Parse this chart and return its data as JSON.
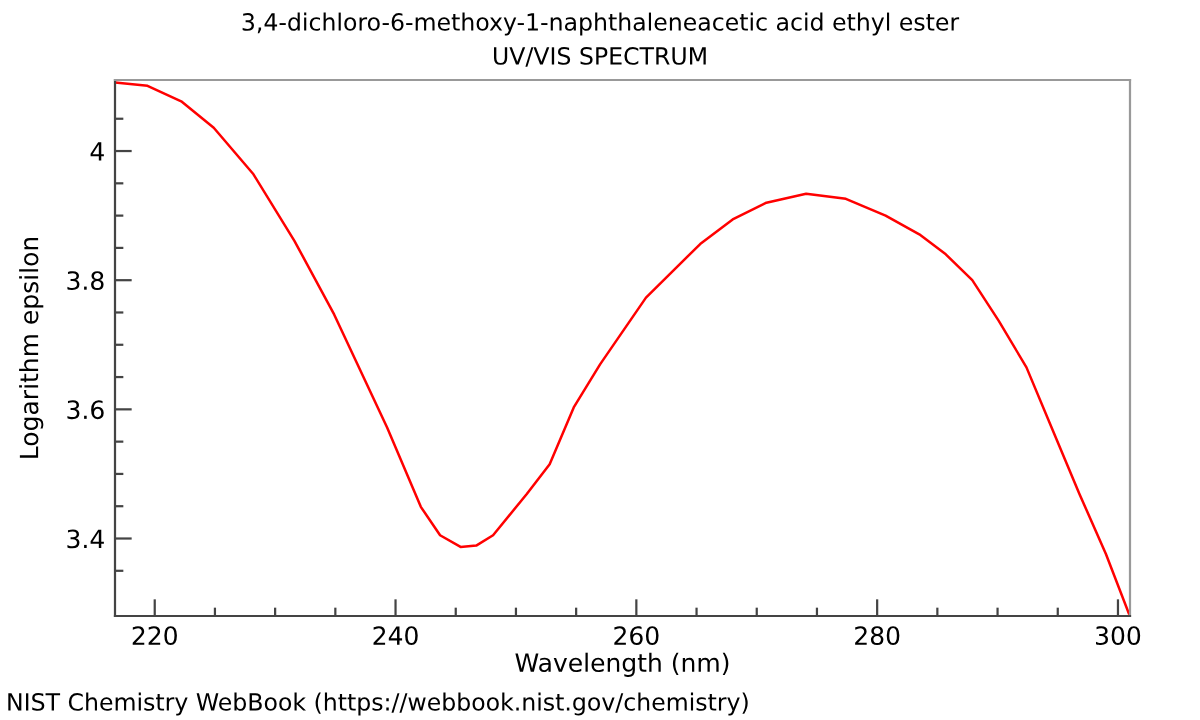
{
  "chart_data": {
    "type": "line",
    "title": "3,4-dichloro-6-methoxy-1-naphthaleneacetic acid ethyl ester",
    "subtitle": "UV/VIS SPECTRUM",
    "xlabel": "Wavelength (nm)",
    "ylabel": "Logarithm epsilon",
    "annotations": [
      "NIST Chemistry WebBook (https://webbook.nist.gov/chemistry)"
    ],
    "xlim": [
      216.7,
      301
    ],
    "ylim": [
      3.28,
      4.11
    ],
    "xticks": [
      220,
      {
        "value": 225,
        "label": null
      },
      {
        "value": 230,
        "label": null
      },
      {
        "value": 235,
        "label": null
      },
      240,
      {
        "value": 245,
        "label": null
      },
      {
        "value": 250,
        "label": null
      },
      {
        "value": 255,
        "label": null
      },
      260,
      {
        "value": 265,
        "label": null
      },
      {
        "value": 270,
        "label": null
      },
      {
        "value": 275,
        "label": null
      },
      280,
      {
        "value": 285,
        "label": null
      },
      {
        "value": 290,
        "label": null
      },
      {
        "value": 295,
        "label": null
      },
      300
    ],
    "yticks": [
      {
        "value": 3.35,
        "label": null
      },
      3.4,
      {
        "value": 3.45,
        "label": null
      },
      {
        "value": 3.5,
        "label": null
      },
      {
        "value": 3.55,
        "label": null
      },
      3.6,
      {
        "value": 3.65,
        "label": null
      },
      {
        "value": 3.7,
        "label": null
      },
      {
        "value": 3.75,
        "label": null
      },
      3.8,
      {
        "value": 3.85,
        "label": null
      },
      {
        "value": 3.9,
        "label": null
      },
      {
        "value": 3.95,
        "label": null
      },
      4,
      {
        "value": 4.05,
        "label": null
      }
    ],
    "grid": false,
    "legend": false,
    "marker": "none",
    "line_style": "solid",
    "series": [
      {
        "color": "#ff0000",
        "x": [
          216.7,
          219.4,
          222.2,
          224.9,
          228.2,
          231.6,
          234.9,
          239.3,
          242.1,
          243.7,
          245.4,
          246.7,
          248.1,
          250.9,
          252.8,
          254.8,
          257.0,
          260.8,
          265.3,
          268.0,
          270.8,
          274.1,
          277.4,
          280.7,
          283.5,
          285.7,
          287.9,
          290.1,
          292.4,
          294.6,
          296.8,
          299.0,
          300.9
        ],
        "values": [
          4.106,
          4.101,
          4.077,
          4.036,
          3.964,
          3.861,
          3.747,
          3.572,
          3.449,
          3.405,
          3.387,
          3.389,
          3.405,
          3.469,
          3.515,
          3.603,
          3.67,
          3.773,
          3.856,
          3.894,
          3.92,
          3.934,
          3.926,
          3.9,
          3.871,
          3.84,
          3.8,
          3.737,
          3.665,
          3.567,
          3.469,
          3.376,
          3.284
        ]
      }
    ]
  }
}
